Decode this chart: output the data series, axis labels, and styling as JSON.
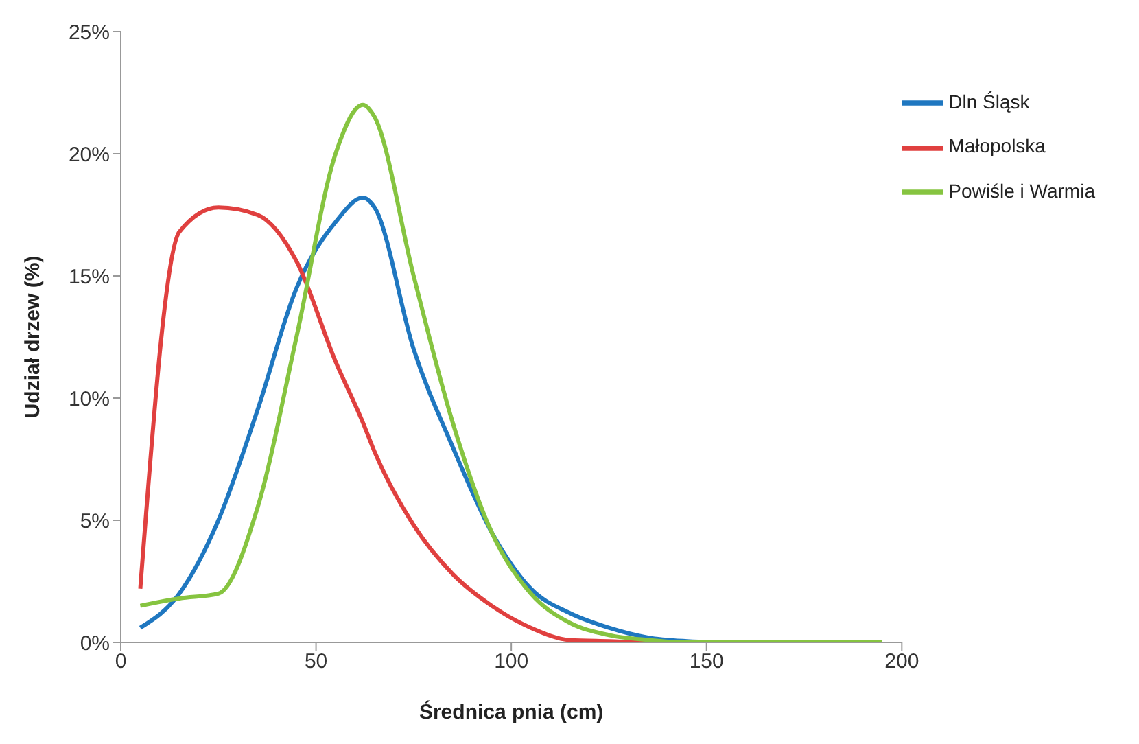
{
  "chart_data": {
    "type": "line",
    "xlabel": "Średnica pnia (cm)",
    "ylabel": "Udział drzew (%)",
    "x": [
      5,
      15,
      25,
      35,
      45,
      55,
      62,
      65,
      75,
      85,
      95,
      105,
      115,
      125,
      135,
      145,
      155,
      165,
      175,
      185,
      195
    ],
    "series": [
      {
        "name": "Dln Śląsk",
        "color": "#1f77c0",
        "values": [
          0.6,
          2.0,
          5.0,
          9.5,
          14.5,
          17.2,
          18.2,
          17.8,
          12,
          8,
          4.5,
          2.2,
          1.2,
          0.6,
          0.2,
          0.05,
          0,
          0,
          null,
          null,
          null
        ]
      },
      {
        "name": "Małopolska",
        "color": "#e0403f",
        "values": [
          2.2,
          16.8,
          17.8,
          17.5,
          15.6,
          11.5,
          9,
          7.8,
          4.8,
          2.8,
          1.5,
          0.6,
          0.1,
          0.05,
          0,
          0,
          null,
          null,
          null,
          null,
          null
        ]
      },
      {
        "name": "Powiśle i Warmia",
        "color": "#86c440",
        "values": [
          1.5,
          1.8,
          2.0,
          5.5,
          12.5,
          20,
          22,
          21.5,
          15,
          9,
          4.5,
          2,
          0.8,
          0.3,
          0.1,
          0,
          0,
          0,
          0,
          0,
          0
        ]
      }
    ],
    "xlim": [
      0,
      200
    ],
    "xticks": [
      0,
      50,
      100,
      150,
      200
    ],
    "ylim": [
      0,
      25
    ],
    "yticks": [
      {
        "value": 0,
        "label": "0%"
      },
      {
        "value": 5,
        "label": "5%"
      },
      {
        "value": 10,
        "label": "10%"
      },
      {
        "value": 15,
        "label": "15%"
      },
      {
        "value": 20,
        "label": "20%"
      },
      {
        "value": 25,
        "label": "25%"
      }
    ],
    "legend": "top right",
    "marker": "none",
    "line_style": "solid",
    "grid": false
  }
}
